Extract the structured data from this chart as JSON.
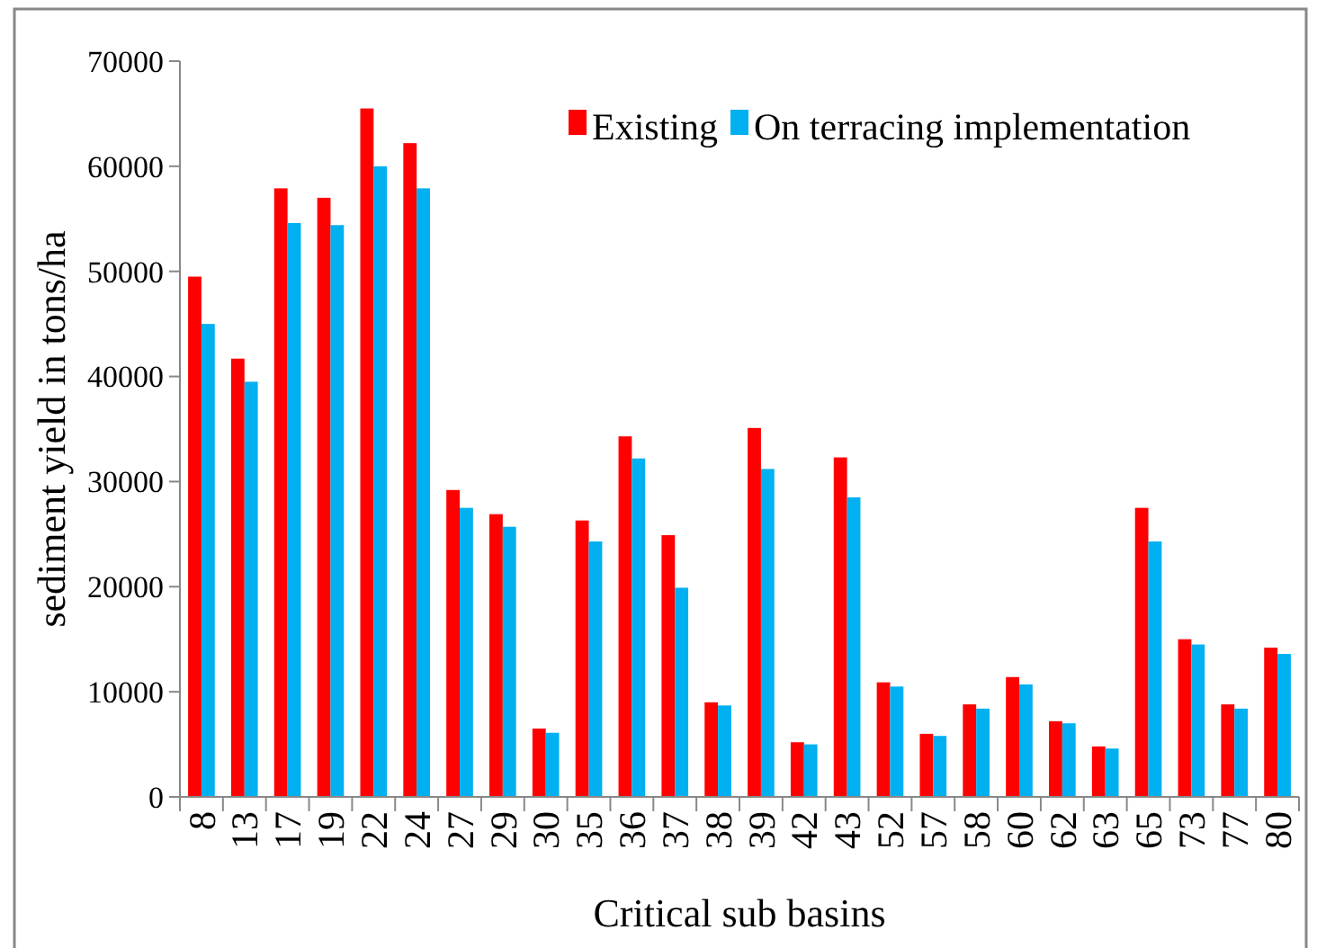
{
  "chart_data": {
    "type": "bar",
    "xlabel": "Critical sub basins",
    "ylabel": "sediment yield in tons/ha",
    "categories": [
      "8",
      "13",
      "17",
      "19",
      "22",
      "24",
      "27",
      "29",
      "30",
      "35",
      "36",
      "37",
      "38",
      "39",
      "42",
      "43",
      "52",
      "57",
      "58",
      "60",
      "62",
      "63",
      "65",
      "73",
      "77",
      "80"
    ],
    "series": [
      {
        "name": "Existing",
        "color": "#ff0000",
        "values": [
          49500,
          41700,
          57900,
          57000,
          65500,
          62200,
          29200,
          26900,
          6500,
          26300,
          34300,
          24900,
          9000,
          35100,
          5200,
          32300,
          10900,
          6000,
          8800,
          11400,
          7200,
          4800,
          27500,
          15000,
          8800,
          14200
        ]
      },
      {
        "name": "On terracing implementation",
        "color": "#00b0f0",
        "values": [
          45000,
          39500,
          54600,
          54400,
          60000,
          57900,
          27500,
          25700,
          6100,
          24300,
          32200,
          19900,
          8700,
          31200,
          5000,
          28500,
          10500,
          5800,
          8400,
          10700,
          7000,
          4600,
          24300,
          14500,
          8400,
          13600
        ]
      }
    ],
    "ylim": [
      0,
      70000
    ],
    "yticks": [
      0,
      10000,
      20000,
      30000,
      40000,
      50000,
      60000,
      70000
    ],
    "grid": false,
    "legend": "top right"
  }
}
